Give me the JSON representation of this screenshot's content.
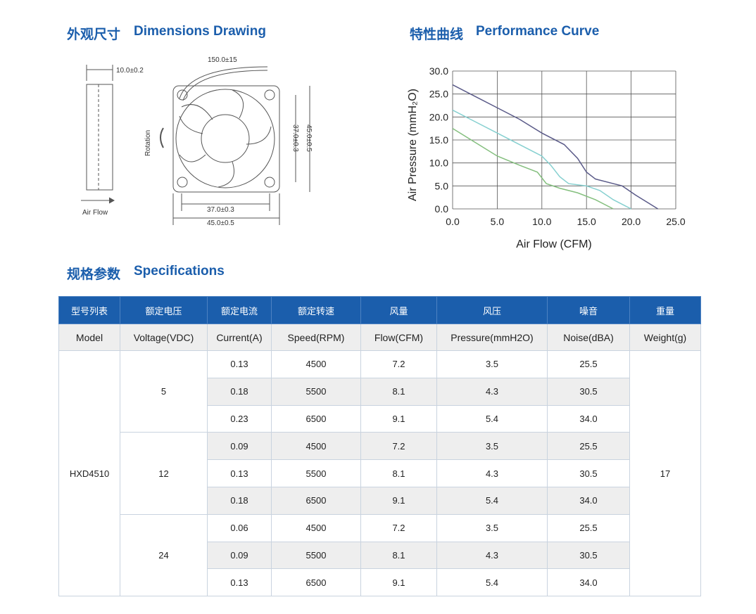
{
  "dimensions": {
    "heading_cn": "外观尺寸",
    "heading_en": "Dimensions Drawing",
    "labels": {
      "thickness": "10.0±0.2",
      "lead": "150.0±15",
      "rotation": "Rotation",
      "airflow": "Air Flow",
      "hole": "37.0±0.3",
      "size": "45.0±0.5"
    }
  },
  "performance": {
    "heading_cn": "特性曲线",
    "heading_en": "Performance Curve",
    "chart_data": {
      "type": "line",
      "xlabel": "Air Flow (CFM)",
      "ylabel": "Air Pressure (mmH₂O)",
      "xlim": [
        0,
        25
      ],
      "ylim": [
        0,
        30
      ],
      "xticks": [
        {
          "value": 0,
          "label": "0.0"
        },
        {
          "value": 5,
          "label": "5.0"
        },
        {
          "value": 10,
          "label": "10.0"
        },
        {
          "value": 15,
          "label": "15.0"
        },
        {
          "value": 20,
          "label": "20.0"
        },
        {
          "value": 25,
          "label": "25.0"
        }
      ],
      "yticks": [
        {
          "value": 0,
          "label": "0.0"
        },
        {
          "value": 5,
          "label": "5.0"
        },
        {
          "value": 10,
          "label": "10.0"
        },
        {
          "value": 15,
          "label": "15.0"
        },
        {
          "value": 20,
          "label": "20.0"
        },
        {
          "value": 25,
          "label": "25.0"
        },
        {
          "value": 30,
          "label": "30.0"
        }
      ],
      "grid": true,
      "series": [
        {
          "color": "#5a5a88",
          "x": [
            0,
            2.5,
            5,
            7.5,
            10,
            12.5,
            14,
            15,
            16,
            18,
            19,
            20.5,
            22,
            23
          ],
          "values": [
            27,
            24.5,
            22,
            19.5,
            16.5,
            14,
            11,
            8,
            6.5,
            5.5,
            5,
            3,
            1.2,
            0
          ]
        },
        {
          "color": "#86d0d0",
          "x": [
            0,
            2.5,
            5,
            7.5,
            10,
            11,
            12,
            13,
            15,
            16.5,
            18,
            20
          ],
          "values": [
            21.5,
            19,
            16.5,
            14,
            11.5,
            9.5,
            7,
            5.5,
            5,
            4,
            2,
            0
          ]
        },
        {
          "color": "#84bf7e",
          "x": [
            0,
            2.5,
            5,
            7.5,
            9.5,
            10.5,
            12,
            14,
            16,
            18
          ],
          "values": [
            17.5,
            14.5,
            11.5,
            9.5,
            8,
            5.5,
            4.5,
            3.5,
            2,
            0
          ]
        }
      ]
    }
  },
  "specifications": {
    "heading_cn": "规格参数",
    "heading_en": "Specifications",
    "table": {
      "header_cn": [
        "型号列表",
        "额定电压",
        "额定电流",
        "额定转速",
        "风量",
        "风压",
        "噪音",
        "重量"
      ],
      "header_en": [
        "Model",
        "Voltage(VDC)",
        "Current(A)",
        "Speed(RPM)",
        "Flow(CFM)",
        "Pressure(mmH2O)",
        "Noise(dBA)",
        "Weight(g)"
      ],
      "model": "HXD4510",
      "weight": "17",
      "groups": [
        {
          "voltage": "5",
          "rows": [
            [
              "0.13",
              "4500",
              "7.2",
              "3.5",
              "25.5"
            ],
            [
              "0.18",
              "5500",
              "8.1",
              "4.3",
              "30.5"
            ],
            [
              "0.23",
              "6500",
              "9.1",
              "5.4",
              "34.0"
            ]
          ]
        },
        {
          "voltage": "12",
          "rows": [
            [
              "0.09",
              "4500",
              "7.2",
              "3.5",
              "25.5"
            ],
            [
              "0.13",
              "5500",
              "8.1",
              "4.3",
              "30.5"
            ],
            [
              "0.18",
              "6500",
              "9.1",
              "5.4",
              "34.0"
            ]
          ]
        },
        {
          "voltage": "24",
          "rows": [
            [
              "0.06",
              "4500",
              "7.2",
              "3.5",
              "25.5"
            ],
            [
              "0.09",
              "5500",
              "8.1",
              "4.3",
              "30.5"
            ],
            [
              "0.13",
              "6500",
              "9.1",
              "5.4",
              "34.0"
            ]
          ]
        }
      ]
    }
  }
}
